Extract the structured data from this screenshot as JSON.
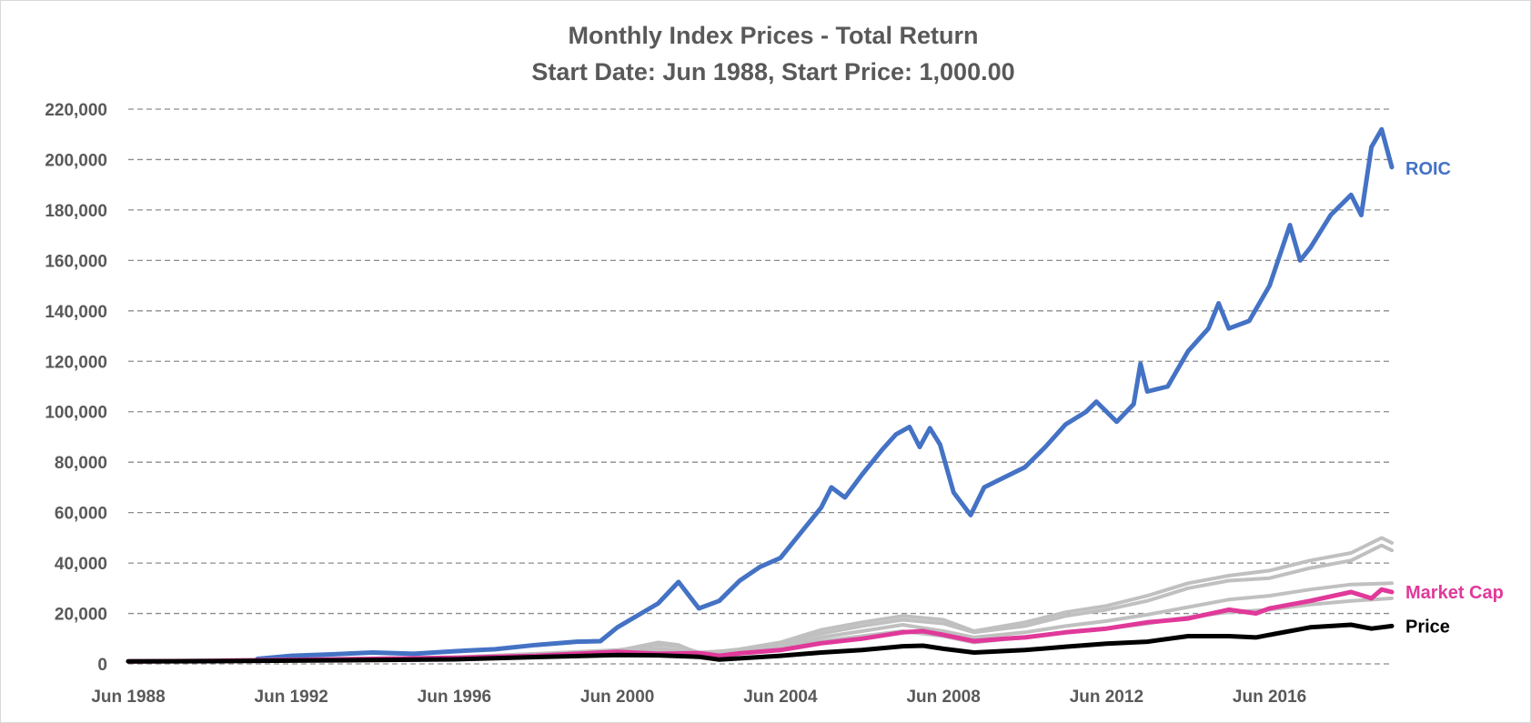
{
  "chart_data": {
    "type": "line",
    "title": "Monthly Index Prices - Total Return",
    "subtitle": "Start Date: Jun 1988, Start Price: 1,000.00",
    "xlabel": "",
    "ylabel": "",
    "ylim": [
      0,
      220000
    ],
    "xlim": [
      "1988-06",
      "2019-06"
    ],
    "y_ticks": [
      0,
      20000,
      40000,
      60000,
      80000,
      100000,
      120000,
      140000,
      160000,
      180000,
      200000,
      220000
    ],
    "y_tick_labels": [
      "0",
      "20,000",
      "40,000",
      "60,000",
      "80,000",
      "100,000",
      "120,000",
      "140,000",
      "160,000",
      "180,000",
      "200,000",
      "220,000"
    ],
    "x_ticks": [
      "1988-06",
      "1992-06",
      "1996-06",
      "2000-06",
      "2004-06",
      "2008-06",
      "2012-06",
      "2016-06"
    ],
    "x_tick_labels": [
      "Jun 1988",
      "Jun 1992",
      "Jun 1996",
      "Jun 2000",
      "Jun 2004",
      "Jun 2008",
      "Jun 2012",
      "Jun 2016"
    ],
    "grid": "horizontal dashed",
    "legend": "inline labels at right end of lines",
    "series": [
      {
        "name": "ROIC",
        "color": "#4472C4",
        "labeled": true,
        "data": [
          [
            "1991-08",
            2000
          ],
          [
            "1992-06",
            3200
          ],
          [
            "1993-06",
            3800
          ],
          [
            "1994-06",
            4500
          ],
          [
            "1995-06",
            4000
          ],
          [
            "1996-06",
            5000
          ],
          [
            "1997-06",
            5800
          ],
          [
            "1998-06",
            7500
          ],
          [
            "1999-06",
            8800
          ],
          [
            "2000-01",
            9000
          ],
          [
            "2000-06",
            14500
          ],
          [
            "2001-01",
            20000
          ],
          [
            "2001-06",
            24000
          ],
          [
            "2001-12",
            32500
          ],
          [
            "2002-06",
            22000
          ],
          [
            "2002-12",
            25000
          ],
          [
            "2003-06",
            33000
          ],
          [
            "2003-12",
            38500
          ],
          [
            "2004-06",
            42000
          ],
          [
            "2004-12",
            52000
          ],
          [
            "2005-06",
            62000
          ],
          [
            "2005-09",
            70000
          ],
          [
            "2006-01",
            66000
          ],
          [
            "2006-06",
            75000
          ],
          [
            "2006-12",
            85000
          ],
          [
            "2007-04",
            91000
          ],
          [
            "2007-08",
            94000
          ],
          [
            "2007-11",
            86000
          ],
          [
            "2008-02",
            93500
          ],
          [
            "2008-05",
            87000
          ],
          [
            "2008-09",
            68000
          ],
          [
            "2009-02",
            59000
          ],
          [
            "2009-06",
            70000
          ],
          [
            "2009-12",
            74000
          ],
          [
            "2010-06",
            78000
          ],
          [
            "2010-12",
            86000
          ],
          [
            "2011-06",
            95000
          ],
          [
            "2011-12",
            100000
          ],
          [
            "2012-03",
            104000
          ],
          [
            "2012-09",
            96000
          ],
          [
            "2013-02",
            103000
          ],
          [
            "2013-04",
            119000
          ],
          [
            "2013-06",
            108000
          ],
          [
            "2013-12",
            110000
          ],
          [
            "2014-06",
            124000
          ],
          [
            "2014-12",
            133000
          ],
          [
            "2015-03",
            143000
          ],
          [
            "2015-06",
            133000
          ],
          [
            "2015-12",
            136000
          ],
          [
            "2016-06",
            150000
          ],
          [
            "2016-12",
            174000
          ],
          [
            "2017-03",
            160000
          ],
          [
            "2017-06",
            165000
          ],
          [
            "2017-12",
            178000
          ],
          [
            "2018-06",
            186000
          ],
          [
            "2018-09",
            178000
          ],
          [
            "2018-12",
            205000
          ],
          [
            "2019-03",
            212000
          ],
          [
            "2019-06",
            197000
          ]
        ]
      },
      {
        "name": "Market Cap",
        "color": "#E0399A",
        "labeled": true,
        "data": [
          [
            "1988-06",
            1000
          ],
          [
            "1990-06",
            1200
          ],
          [
            "1992-06",
            1600
          ],
          [
            "1994-06",
            2000
          ],
          [
            "1996-06",
            2400
          ],
          [
            "1998-06",
            3200
          ],
          [
            "2000-06",
            4800
          ],
          [
            "2001-06",
            4000
          ],
          [
            "2002-06",
            4300
          ],
          [
            "2002-12",
            3200
          ],
          [
            "2003-06",
            4200
          ],
          [
            "2004-06",
            5500
          ],
          [
            "2005-06",
            8200
          ],
          [
            "2006-06",
            10000
          ],
          [
            "2007-06",
            12500
          ],
          [
            "2007-12",
            13000
          ],
          [
            "2008-06",
            11500
          ],
          [
            "2009-03",
            9000
          ],
          [
            "2009-12",
            10000
          ],
          [
            "2010-06",
            10500
          ],
          [
            "2011-06",
            12500
          ],
          [
            "2012-06",
            14000
          ],
          [
            "2013-06",
            16500
          ],
          [
            "2014-06",
            18000
          ],
          [
            "2015-06",
            21500
          ],
          [
            "2016-02",
            20000
          ],
          [
            "2016-06",
            22000
          ],
          [
            "2017-06",
            25000
          ],
          [
            "2018-06",
            28500
          ],
          [
            "2018-12",
            26000
          ],
          [
            "2019-03",
            29500
          ],
          [
            "2019-06",
            28500
          ]
        ]
      },
      {
        "name": "Price",
        "color": "#000000",
        "labeled": true,
        "data": [
          [
            "1988-06",
            1000
          ],
          [
            "1990-06",
            1100
          ],
          [
            "1992-06",
            1300
          ],
          [
            "1994-06",
            1500
          ],
          [
            "1996-06",
            1800
          ],
          [
            "1998-06",
            2700
          ],
          [
            "2000-06",
            3500
          ],
          [
            "2001-06",
            3400
          ],
          [
            "2002-06",
            2800
          ],
          [
            "2002-12",
            1700
          ],
          [
            "2003-06",
            2200
          ],
          [
            "2004-06",
            3200
          ],
          [
            "2005-06",
            4500
          ],
          [
            "2006-06",
            5500
          ],
          [
            "2007-06",
            7000
          ],
          [
            "2007-12",
            7200
          ],
          [
            "2008-06",
            6000
          ],
          [
            "2009-03",
            4500
          ],
          [
            "2010-06",
            5500
          ],
          [
            "2011-06",
            6800
          ],
          [
            "2012-06",
            8000
          ],
          [
            "2013-06",
            8800
          ],
          [
            "2014-06",
            11000
          ],
          [
            "2015-06",
            11000
          ],
          [
            "2016-02",
            10500
          ],
          [
            "2016-06",
            11500
          ],
          [
            "2017-06",
            14500
          ],
          [
            "2018-06",
            15500
          ],
          [
            "2018-12",
            14000
          ],
          [
            "2019-06",
            15000
          ]
        ]
      },
      {
        "name": "",
        "color": "#C0C0C0",
        "labeled": false,
        "data": [
          [
            "1988-06",
            1000
          ],
          [
            "1992-06",
            1800
          ],
          [
            "1996-06",
            2600
          ],
          [
            "2000-06",
            5500
          ],
          [
            "2001-06",
            7500
          ],
          [
            "2001-12",
            7000
          ],
          [
            "2002-06",
            4500
          ],
          [
            "2003-06",
            5500
          ],
          [
            "2004-06",
            8000
          ],
          [
            "2005-06",
            12000
          ],
          [
            "2006-06",
            15000
          ],
          [
            "2007-06",
            17500
          ],
          [
            "2008-06",
            16000
          ],
          [
            "2009-03",
            12500
          ],
          [
            "2010-06",
            15000
          ],
          [
            "2011-06",
            19000
          ],
          [
            "2012-06",
            21500
          ],
          [
            "2013-06",
            25000
          ],
          [
            "2014-06",
            30000
          ],
          [
            "2015-06",
            33000
          ],
          [
            "2016-06",
            34000
          ],
          [
            "2017-06",
            38000
          ],
          [
            "2018-06",
            41000
          ],
          [
            "2019-03",
            47000
          ],
          [
            "2019-06",
            45000
          ]
        ]
      },
      {
        "name": "",
        "color": "#C0C0C0",
        "labeled": false,
        "data": [
          [
            "1988-06",
            1000
          ],
          [
            "1992-06",
            1700
          ],
          [
            "1996-06",
            2500
          ],
          [
            "2000-06",
            5200
          ],
          [
            "2001-06",
            8500
          ],
          [
            "2001-12",
            7500
          ],
          [
            "2002-06",
            4000
          ],
          [
            "2003-06",
            5800
          ],
          [
            "2004-06",
            8500
          ],
          [
            "2005-06",
            13500
          ],
          [
            "2006-06",
            16500
          ],
          [
            "2007-06",
            19000
          ],
          [
            "2008-06",
            17500
          ],
          [
            "2009-03",
            13000
          ],
          [
            "2010-06",
            16500
          ],
          [
            "2011-06",
            20500
          ],
          [
            "2012-06",
            23000
          ],
          [
            "2013-06",
            27000
          ],
          [
            "2014-06",
            32000
          ],
          [
            "2015-06",
            35000
          ],
          [
            "2016-06",
            37000
          ],
          [
            "2017-06",
            41000
          ],
          [
            "2018-06",
            44000
          ],
          [
            "2019-03",
            50000
          ],
          [
            "2019-06",
            48000
          ]
        ]
      },
      {
        "name": "",
        "color": "#C0C0C0",
        "labeled": false,
        "data": [
          [
            "1988-06",
            1000
          ],
          [
            "1992-06",
            1600
          ],
          [
            "1996-06",
            2300
          ],
          [
            "2000-06",
            4800
          ],
          [
            "2001-06",
            6000
          ],
          [
            "2001-12",
            5500
          ],
          [
            "2002-06",
            3500
          ],
          [
            "2003-06",
            4800
          ],
          [
            "2004-06",
            6800
          ],
          [
            "2005-06",
            10500
          ],
          [
            "2006-06",
            13000
          ],
          [
            "2007-06",
            15500
          ],
          [
            "2008-06",
            13000
          ],
          [
            "2009-03",
            10500
          ],
          [
            "2010-06",
            12500
          ],
          [
            "2011-06",
            15000
          ],
          [
            "2012-06",
            17000
          ],
          [
            "2013-06",
            19500
          ],
          [
            "2014-06",
            22500
          ],
          [
            "2015-06",
            25500
          ],
          [
            "2016-06",
            27000
          ],
          [
            "2017-06",
            29500
          ],
          [
            "2018-06",
            31500
          ],
          [
            "2019-06",
            32000
          ]
        ]
      },
      {
        "name": "",
        "color": "#C0C0C0",
        "labeled": false,
        "data": [
          [
            "1988-06",
            1000
          ],
          [
            "1992-06",
            1500
          ],
          [
            "1996-06",
            2100
          ],
          [
            "2000-06",
            4300
          ],
          [
            "2001-06",
            4800
          ],
          [
            "2002-06",
            3000
          ],
          [
            "2003-06",
            4200
          ],
          [
            "2004-06",
            6000
          ],
          [
            "2005-06",
            9000
          ],
          [
            "2006-06",
            11000
          ],
          [
            "2007-06",
            13000
          ],
          [
            "2008-06",
            11000
          ],
          [
            "2009-03",
            8500
          ],
          [
            "2010-06",
            10500
          ],
          [
            "2011-06",
            12500
          ],
          [
            "2012-06",
            14000
          ],
          [
            "2013-06",
            16000
          ],
          [
            "2014-06",
            18500
          ],
          [
            "2015-06",
            20500
          ],
          [
            "2016-06",
            21500
          ],
          [
            "2017-06",
            23500
          ],
          [
            "2018-06",
            25000
          ],
          [
            "2019-06",
            26000
          ]
        ]
      }
    ]
  }
}
